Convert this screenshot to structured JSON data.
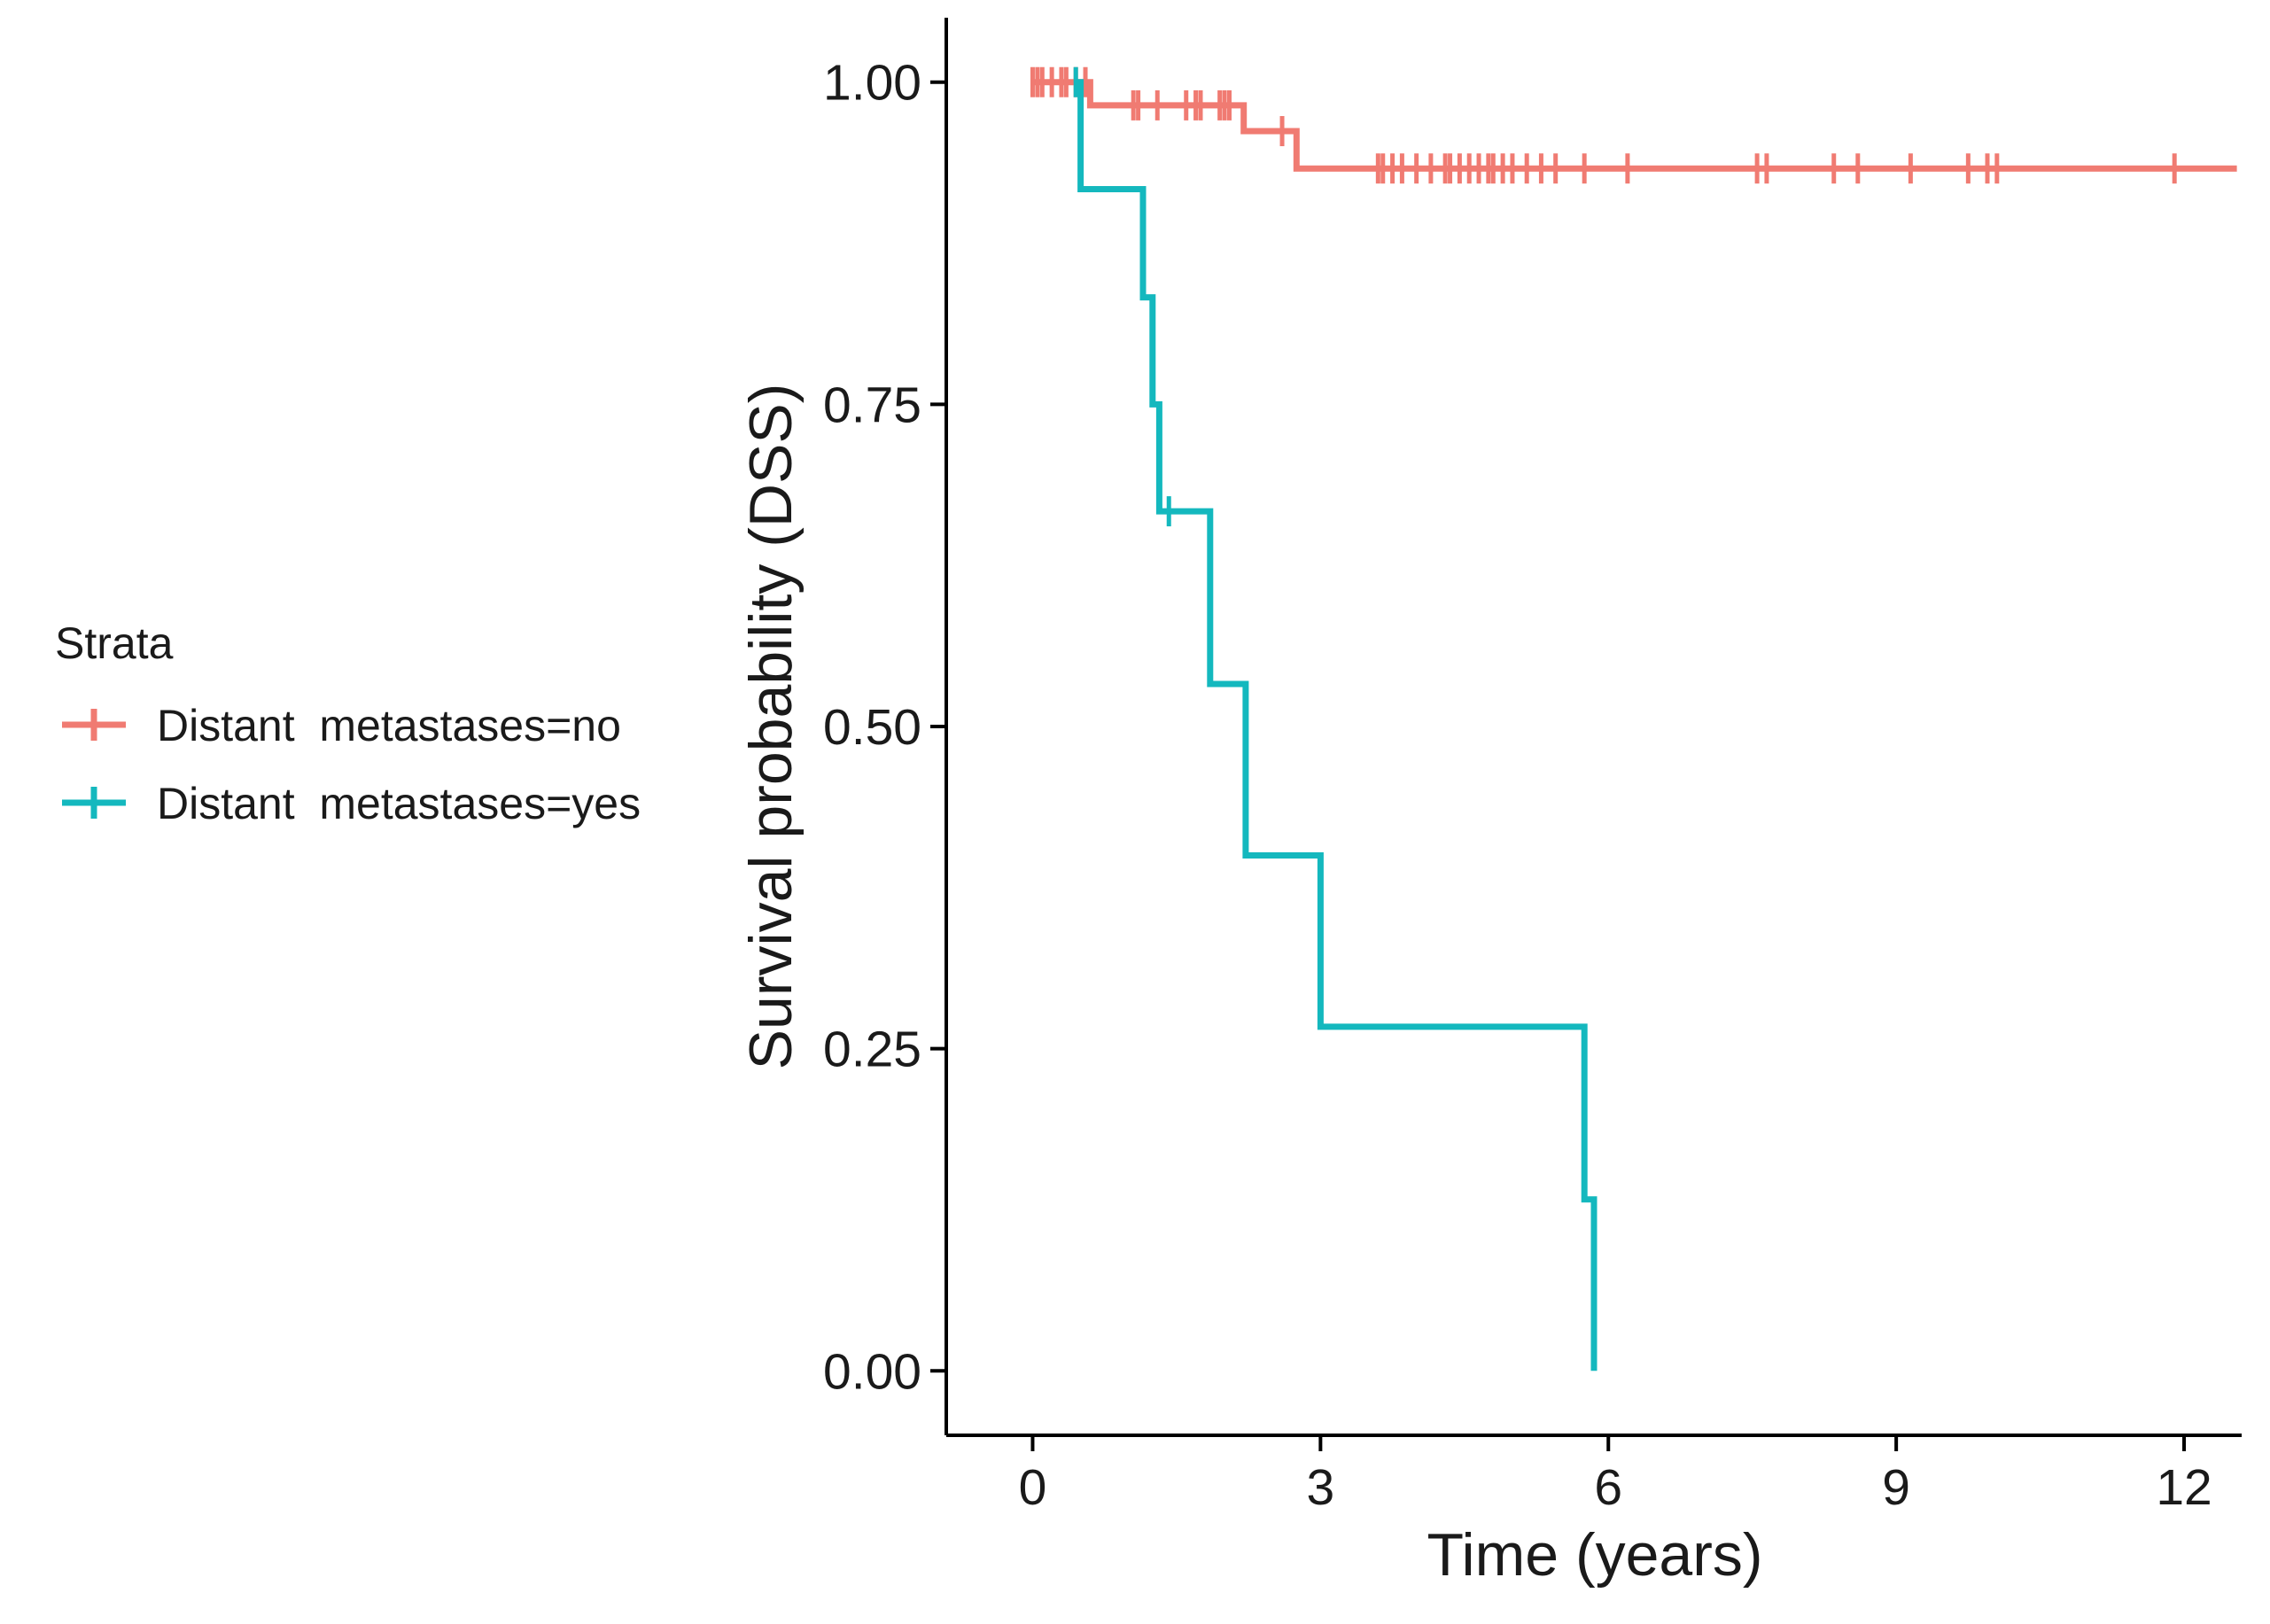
{
  "chart_data": {
    "type": "line",
    "subtype": "kaplan-meier step curve",
    "title": "",
    "xlabel": "Time (years)",
    "ylabel": "Survival probability (DSS)",
    "xlim": [
      -0.9,
      12.6
    ],
    "ylim": [
      -0.05,
      1.05
    ],
    "xticks": [
      0,
      3,
      6,
      9,
      12
    ],
    "xtick_labels": [
      "0",
      "3",
      "6",
      "9",
      "12"
    ],
    "yticks": [
      0,
      0.25,
      0.5,
      0.75,
      1.0
    ],
    "ytick_labels": [
      "0.00",
      "0.25",
      "0.50",
      "0.75",
      "1.00"
    ],
    "grid": false,
    "legend": {
      "title": "Strata",
      "position": "left",
      "entries": [
        "Distant  metastases=no",
        "Distant  metastases=yes"
      ]
    },
    "series": [
      {
        "name": "Distant  metastases=no",
        "color": "#f07b72",
        "steps": [
          [
            0.0,
            1.0
          ],
          [
            0.6,
            1.0
          ],
          [
            0.6,
            0.982
          ],
          [
            2.2,
            0.982
          ],
          [
            2.2,
            0.962
          ],
          [
            2.75,
            0.962
          ],
          [
            2.75,
            0.933
          ],
          [
            12.55,
            0.933
          ]
        ],
        "censor_times": [
          0.0,
          0.05,
          0.1,
          0.2,
          0.3,
          0.35,
          0.45,
          0.55,
          1.05,
          1.1,
          1.3,
          1.6,
          1.7,
          1.75,
          1.95,
          2.0,
          2.05,
          2.6,
          3.6,
          3.65,
          3.75,
          3.85,
          4.0,
          4.15,
          4.3,
          4.35,
          4.45,
          4.55,
          4.65,
          4.75,
          4.8,
          4.9,
          5.0,
          5.15,
          5.3,
          5.45,
          5.75,
          6.2,
          7.55,
          7.65,
          8.35,
          8.6,
          9.15,
          9.75,
          9.95,
          10.05,
          11.9
        ],
        "censor_values": [
          1.0,
          1.0,
          1.0,
          1.0,
          1.0,
          1.0,
          1.0,
          1.0,
          0.982,
          0.982,
          0.982,
          0.982,
          0.982,
          0.982,
          0.982,
          0.982,
          0.982,
          0.962,
          0.933,
          0.933,
          0.933,
          0.933,
          0.933,
          0.933,
          0.933,
          0.933,
          0.933,
          0.933,
          0.933,
          0.933,
          0.933,
          0.933,
          0.933,
          0.933,
          0.933,
          0.933,
          0.933,
          0.933,
          0.933,
          0.933,
          0.933,
          0.933,
          0.933,
          0.933,
          0.933,
          0.933,
          0.933
        ]
      },
      {
        "name": "Distant  metastases=yes",
        "color": "#14b8be",
        "steps": [
          [
            0.45,
            1.0
          ],
          [
            0.5,
            1.0
          ],
          [
            0.5,
            0.917
          ],
          [
            1.15,
            0.917
          ],
          [
            1.15,
            0.833
          ],
          [
            1.25,
            0.833
          ],
          [
            1.25,
            0.75
          ],
          [
            1.32,
            0.75
          ],
          [
            1.32,
            0.667
          ],
          [
            1.85,
            0.667
          ],
          [
            1.85,
            0.533
          ],
          [
            2.22,
            0.533
          ],
          [
            2.22,
            0.4
          ],
          [
            3.0,
            0.4
          ],
          [
            3.0,
            0.267
          ],
          [
            5.75,
            0.267
          ],
          [
            5.75,
            0.133
          ],
          [
            5.85,
            0.133
          ],
          [
            5.85,
            0.0
          ]
        ],
        "censor_times": [
          0.45,
          1.42
        ],
        "censor_values": [
          1.0,
          0.667
        ]
      }
    ]
  }
}
